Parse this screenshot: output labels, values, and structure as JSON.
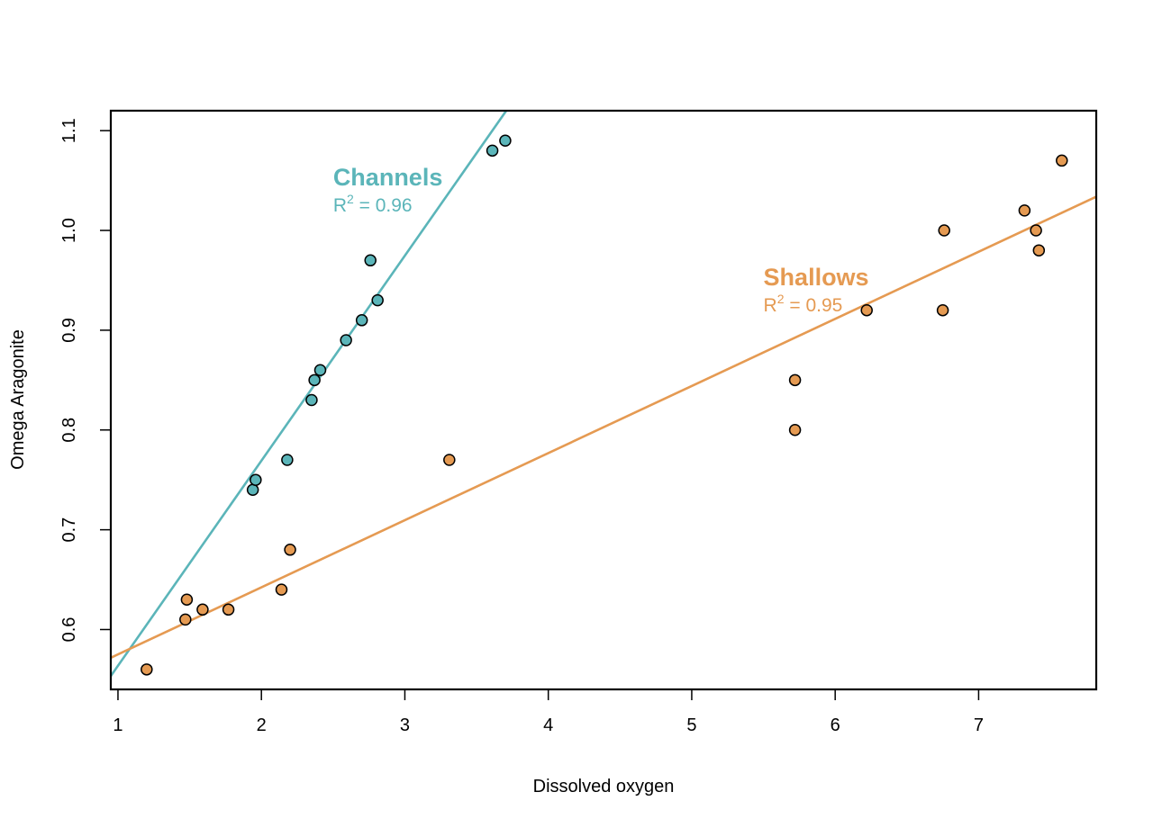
{
  "chart_data": {
    "type": "scatter",
    "xlabel": "Dissolved oxygen",
    "ylabel": "Omega Aragonite",
    "xlim": [
      0.95,
      7.82
    ],
    "ylim": [
      0.54,
      1.12
    ],
    "x_ticks": [
      1,
      2,
      3,
      4,
      5,
      6,
      7
    ],
    "y_ticks": [
      0.6,
      0.7,
      0.8,
      0.9,
      1.0,
      1.1
    ],
    "y_tick_labels": [
      "0.6",
      "0.7",
      "0.8",
      "0.9",
      "1.0",
      "1.1"
    ],
    "grid": false,
    "legend": "none",
    "series": [
      {
        "key": "channels",
        "color": "#5bb5b9",
        "points": [
          {
            "x": 1.94,
            "y": 0.74
          },
          {
            "x": 1.96,
            "y": 0.75
          },
          {
            "x": 2.18,
            "y": 0.77
          },
          {
            "x": 2.35,
            "y": 0.83
          },
          {
            "x": 2.37,
            "y": 0.85
          },
          {
            "x": 2.41,
            "y": 0.86
          },
          {
            "x": 2.59,
            "y": 0.89
          },
          {
            "x": 2.7,
            "y": 0.91
          },
          {
            "x": 2.76,
            "y": 0.97
          },
          {
            "x": 2.81,
            "y": 0.93
          },
          {
            "x": 3.61,
            "y": 1.08
          },
          {
            "x": 3.7,
            "y": 1.09
          }
        ],
        "fit": {
          "slope": 0.2055,
          "intercept": 0.3582
        },
        "annotation": {
          "name": "Channels",
          "r2_prefix": "R",
          "r2_sup": "2",
          "r2_value": " = 0.96",
          "x": 2.5,
          "y": 1.045
        }
      },
      {
        "key": "shallows",
        "color": "#e59a52",
        "points": [
          {
            "x": 1.2,
            "y": 0.56
          },
          {
            "x": 1.47,
            "y": 0.61
          },
          {
            "x": 1.48,
            "y": 0.63
          },
          {
            "x": 1.59,
            "y": 0.62
          },
          {
            "x": 1.77,
            "y": 0.62
          },
          {
            "x": 2.14,
            "y": 0.64
          },
          {
            "x": 2.2,
            "y": 0.68
          },
          {
            "x": 3.31,
            "y": 0.77
          },
          {
            "x": 5.72,
            "y": 0.8
          },
          {
            "x": 5.72,
            "y": 0.85
          },
          {
            "x": 6.22,
            "y": 0.92
          },
          {
            "x": 6.75,
            "y": 0.92
          },
          {
            "x": 6.76,
            "y": 1.0
          },
          {
            "x": 7.32,
            "y": 1.02
          },
          {
            "x": 7.4,
            "y": 1.0
          },
          {
            "x": 7.42,
            "y": 0.98
          },
          {
            "x": 7.58,
            "y": 1.07
          }
        ],
        "fit": {
          "slope": 0.06726,
          "intercept": 0.5078
        },
        "annotation": {
          "name": "Shallows",
          "r2_prefix": "R",
          "r2_sup": "2",
          "r2_value": " = 0.95",
          "x": 5.5,
          "y": 0.945
        }
      }
    ]
  }
}
